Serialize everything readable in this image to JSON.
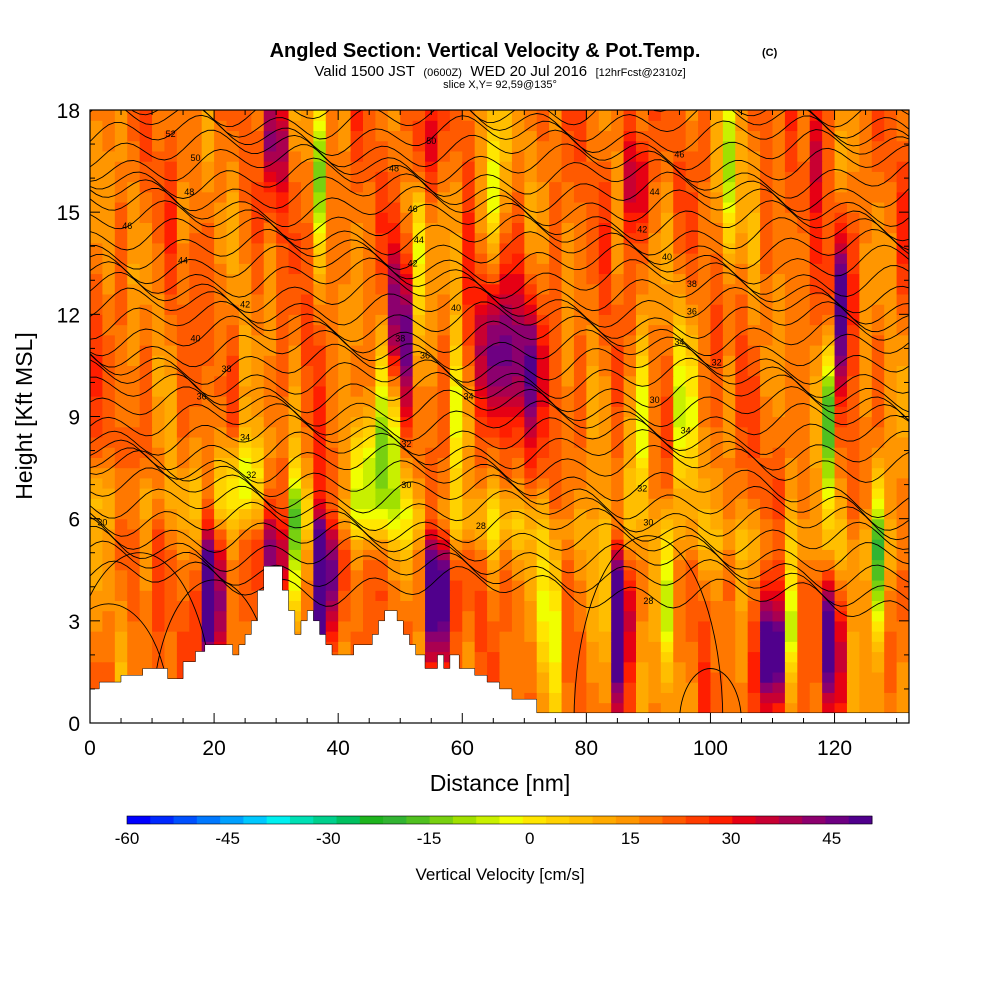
{
  "chart_data": {
    "type": "heatmap",
    "title": "Angled Section: Vertical Velocity & Pot.Temp.",
    "title_units": "(C)",
    "subtitle_valid": "Valid 1500 JST",
    "subtitle_utc": "(0600Z)",
    "subtitle_date": "WED 20 Jul 2016",
    "subtitle_fcst": "[12hrFcst@2310z]",
    "slice_label": "slice X,Y= 92,59@135°",
    "xlabel": "Distance [nm]",
    "ylabel": "Height [Kft MSL]",
    "xlim": [
      0,
      132
    ],
    "ylim": [
      0,
      18
    ],
    "x_ticks": [
      0,
      20,
      40,
      60,
      80,
      100,
      120
    ],
    "y_ticks": [
      0,
      3,
      6,
      9,
      12,
      15,
      18
    ],
    "colorbar": {
      "label": "Vertical Velocity [cm/s]",
      "range": [
        -60,
        51
      ],
      "step": 3,
      "tick_values": [
        -60,
        -45,
        -30,
        -15,
        0,
        15,
        30,
        45
      ],
      "colors": [
        "#0000ff",
        "#0028ff",
        "#0050ff",
        "#0078ff",
        "#00a0ff",
        "#00c8ff",
        "#00f0f0",
        "#00e0b4",
        "#00d08c",
        "#00c060",
        "#1eb41e",
        "#32b432",
        "#50c020",
        "#78d010",
        "#a0e000",
        "#c8f000",
        "#f0ff00",
        "#ffe600",
        "#ffd200",
        "#ffbe00",
        "#ffaa00",
        "#ff9600",
        "#ff7800",
        "#ff5a00",
        "#ff3c00",
        "#ff1e00",
        "#e60014",
        "#c80032",
        "#aa0050",
        "#8c006e",
        "#6e0082",
        "#50008c"
      ]
    },
    "terrain": [
      [
        0,
        1
      ],
      [
        1.5,
        1
      ],
      [
        1.5,
        1.2
      ],
      [
        5,
        1.2
      ],
      [
        5,
        1.4
      ],
      [
        8.5,
        1.4
      ],
      [
        8.5,
        1.6
      ],
      [
        12.5,
        1.6
      ],
      [
        12.5,
        1.3
      ],
      [
        15,
        1.3
      ],
      [
        15,
        1.8
      ],
      [
        17,
        1.8
      ],
      [
        17,
        2.1
      ],
      [
        18.5,
        2.1
      ],
      [
        18.5,
        2.3
      ],
      [
        23,
        2.3
      ],
      [
        23,
        2
      ],
      [
        24,
        2
      ],
      [
        24,
        2.3
      ],
      [
        25,
        2.3
      ],
      [
        25,
        2.6
      ],
      [
        26,
        2.6
      ],
      [
        26,
        3
      ],
      [
        27,
        3
      ],
      [
        27,
        3.9
      ],
      [
        28,
        3.9
      ],
      [
        28,
        4.6
      ],
      [
        31,
        4.6
      ],
      [
        31,
        3.9
      ],
      [
        32,
        3.9
      ],
      [
        32,
        3.3
      ],
      [
        33,
        3.3
      ],
      [
        33,
        2.6
      ],
      [
        34,
        2.6
      ],
      [
        34,
        3
      ],
      [
        35,
        3
      ],
      [
        35,
        3.3
      ],
      [
        36,
        3.3
      ],
      [
        36,
        3
      ],
      [
        37,
        3
      ],
      [
        37,
        2.6
      ],
      [
        38,
        2.6
      ],
      [
        38,
        2.3
      ],
      [
        39,
        2.3
      ],
      [
        39,
        2
      ],
      [
        42.5,
        2
      ],
      [
        42.5,
        2.3
      ],
      [
        45.5,
        2.3
      ],
      [
        45.5,
        2.6
      ],
      [
        46.5,
        2.6
      ],
      [
        46.5,
        3
      ],
      [
        47.5,
        3
      ],
      [
        47.5,
        3.3
      ],
      [
        49.5,
        3.3
      ],
      [
        49.5,
        3
      ],
      [
        50.5,
        3
      ],
      [
        50.5,
        2.6
      ],
      [
        51.5,
        2.6
      ],
      [
        51.5,
        2.3
      ],
      [
        52.5,
        2.3
      ],
      [
        52.5,
        2
      ],
      [
        54,
        2
      ],
      [
        54,
        1.6
      ],
      [
        56,
        1.6
      ],
      [
        56,
        2
      ],
      [
        57,
        2
      ],
      [
        57,
        1.6
      ],
      [
        58,
        1.6
      ],
      [
        58,
        2
      ],
      [
        59.5,
        2
      ],
      [
        59.5,
        1.6
      ],
      [
        62,
        1.6
      ],
      [
        62,
        1.4
      ],
      [
        64,
        1.4
      ],
      [
        64,
        1.2
      ],
      [
        66,
        1.2
      ],
      [
        66,
        1
      ],
      [
        68,
        1
      ],
      [
        68,
        0.7
      ],
      [
        72,
        0.7
      ],
      [
        72,
        0.3
      ],
      [
        132,
        0.3
      ]
    ],
    "grid": {
      "cols": 66,
      "rows": 60,
      "seed": 7
    },
    "updrafts": [
      {
        "x": 19.5,
        "y": 3.6,
        "amp": 40,
        "sx": 1.4,
        "sy": 1.4
      },
      {
        "x": 30,
        "y": 5.6,
        "amp": 35,
        "sx": 1.2,
        "sy": 1.4
      },
      {
        "x": 37.5,
        "y": 4.4,
        "amp": 55,
        "sx": 1.2,
        "sy": 1.6
      },
      {
        "x": 50,
        "y": 11.5,
        "amp": 35,
        "sx": 1.2,
        "sy": 1.8
      },
      {
        "x": 56,
        "y": 3.8,
        "amp": 45,
        "sx": 1.3,
        "sy": 1.5
      },
      {
        "x": 64,
        "y": 11,
        "amp": 18,
        "sx": 3,
        "sy": 1.6
      },
      {
        "x": 70,
        "y": 10.5,
        "amp": 18,
        "sx": 3,
        "sy": 1.6
      },
      {
        "x": 85.5,
        "y": 3.2,
        "amp": 45,
        "sx": 1.1,
        "sy": 1.5
      },
      {
        "x": 110,
        "y": 2,
        "amp": 48,
        "sx": 1.5,
        "sy": 1.2
      },
      {
        "x": 119.5,
        "y": 2.5,
        "amp": 38,
        "sx": 1,
        "sy": 1.3
      },
      {
        "x": 121,
        "y": 12.5,
        "amp": 30,
        "sx": 1.1,
        "sy": 1.6
      },
      {
        "x": 30,
        "y": 17,
        "amp": 22,
        "sx": 1.2,
        "sy": 1.2
      },
      {
        "x": 54,
        "y": 17,
        "amp": 22,
        "sx": 1.2,
        "sy": 1.2
      },
      {
        "x": 88,
        "y": 16,
        "amp": 22,
        "sx": 1.2,
        "sy": 1.2
      },
      {
        "x": 118,
        "y": 17,
        "amp": 20,
        "sx": 1.2,
        "sy": 1.2
      }
    ],
    "downdrafts": [
      {
        "x": 33,
        "y": 5.2,
        "amp": -28,
        "sx": 1,
        "sy": 1.6
      },
      {
        "x": 48.5,
        "y": 9,
        "amp": -24,
        "sx": 1.1,
        "sy": 2
      },
      {
        "x": 53,
        "y": 13.5,
        "amp": -22,
        "sx": 1,
        "sy": 2.2
      },
      {
        "x": 59,
        "y": 9,
        "amp": -22,
        "sx": 1.1,
        "sy": 2
      },
      {
        "x": 74,
        "y": 3.4,
        "amp": -26,
        "sx": 1,
        "sy": 1.6
      },
      {
        "x": 82,
        "y": 3.5,
        "amp": -20,
        "sx": 1,
        "sy": 1.5
      },
      {
        "x": 88.5,
        "y": 8.5,
        "amp": -24,
        "sx": 1,
        "sy": 2
      },
      {
        "x": 93,
        "y": 3.4,
        "amp": -22,
        "sx": 1,
        "sy": 1.5
      },
      {
        "x": 96,
        "y": 9,
        "amp": -22,
        "sx": 1.1,
        "sy": 2
      },
      {
        "x": 112.5,
        "y": 2.5,
        "amp": -32,
        "sx": 1,
        "sy": 1.4
      },
      {
        "x": 120,
        "y": 17,
        "amp": -55,
        "sx": 0.5,
        "sy": 1
      },
      {
        "x": 119,
        "y": 9,
        "amp": -35,
        "sx": 0.6,
        "sy": 1.8
      },
      {
        "x": 127,
        "y": 5,
        "amp": -26,
        "sx": 1.2,
        "sy": 1.8
      },
      {
        "x": 37,
        "y": 16.5,
        "amp": -22,
        "sx": 0.8,
        "sy": 1.6
      },
      {
        "x": 65,
        "y": 16,
        "amp": -22,
        "sx": 1.2,
        "sy": 1.8
      },
      {
        "x": 103,
        "y": 16,
        "amp": -22,
        "sx": 1.2,
        "sy": 1.8
      },
      {
        "x": 45,
        "y": 7.5,
        "amp": -22,
        "sx": 2.5,
        "sy": 1.1
      },
      {
        "x": 25,
        "y": 7.5,
        "amp": -18,
        "sx": 3,
        "sy": 0.8
      }
    ],
    "contour_labels": [
      {
        "x": 13,
        "y": 17.2,
        "text": "52"
      },
      {
        "x": 17,
        "y": 16.5,
        "text": "50"
      },
      {
        "x": 16,
        "y": 15.5,
        "text": "48"
      },
      {
        "x": 6,
        "y": 14.5,
        "text": "46"
      },
      {
        "x": 15,
        "y": 13.5,
        "text": "44"
      },
      {
        "x": 25,
        "y": 12.2,
        "text": "42"
      },
      {
        "x": 17,
        "y": 11.2,
        "text": "40"
      },
      {
        "x": 22,
        "y": 10.3,
        "text": "38"
      },
      {
        "x": 18,
        "y": 9.5,
        "text": "36"
      },
      {
        "x": 25,
        "y": 8.3,
        "text": "34"
      },
      {
        "x": 26,
        "y": 7.2,
        "text": "32"
      },
      {
        "x": 2,
        "y": 5.8,
        "text": "30"
      },
      {
        "x": 55,
        "y": 17,
        "text": "50"
      },
      {
        "x": 49,
        "y": 16.2,
        "text": "48"
      },
      {
        "x": 52,
        "y": 15,
        "text": "46"
      },
      {
        "x": 53,
        "y": 14.1,
        "text": "44"
      },
      {
        "x": 52,
        "y": 13.4,
        "text": "42"
      },
      {
        "x": 59,
        "y": 12.1,
        "text": "40"
      },
      {
        "x": 50,
        "y": 11.2,
        "text": "38"
      },
      {
        "x": 54,
        "y": 10.7,
        "text": "36"
      },
      {
        "x": 61,
        "y": 9.5,
        "text": "34"
      },
      {
        "x": 51,
        "y": 8.1,
        "text": "32"
      },
      {
        "x": 51,
        "y": 6.9,
        "text": "30"
      },
      {
        "x": 63,
        "y": 5.7,
        "text": "28"
      },
      {
        "x": 95,
        "y": 16.6,
        "text": "46"
      },
      {
        "x": 91,
        "y": 15.5,
        "text": "44"
      },
      {
        "x": 89,
        "y": 14.4,
        "text": "42"
      },
      {
        "x": 93,
        "y": 13.6,
        "text": "40"
      },
      {
        "x": 97,
        "y": 12.8,
        "text": "38"
      },
      {
        "x": 97,
        "y": 12,
        "text": "36"
      },
      {
        "x": 95,
        "y": 11.1,
        "text": "34"
      },
      {
        "x": 101,
        "y": 10.5,
        "text": "32"
      },
      {
        "x": 91,
        "y": 9.4,
        "text": "30"
      },
      {
        "x": 96,
        "y": 8.5,
        "text": "34"
      },
      {
        "x": 89,
        "y": 6.8,
        "text": "32"
      },
      {
        "x": 90,
        "y": 5.8,
        "text": "30"
      },
      {
        "x": 90,
        "y": 3.5,
        "text": "28"
      }
    ]
  }
}
